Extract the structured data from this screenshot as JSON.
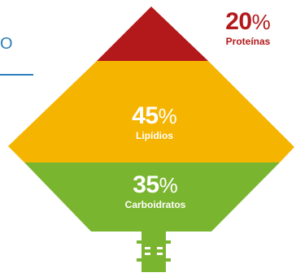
{
  "edge_text": "O",
  "segments": [
    {
      "key": "proteinas",
      "value_num": "20",
      "unit": "%",
      "label": "Proteínas",
      "color": "#b3191b"
    },
    {
      "key": "lipidios",
      "value_num": "45",
      "unit": "%",
      "label": "Lipídios",
      "color": "#f5b400"
    },
    {
      "key": "carboidratos",
      "value_num": "35",
      "unit": "%",
      "label": "Carboidratos",
      "color": "#7ab52f"
    }
  ],
  "colors": {
    "accent_blue": "#2c7fb8",
    "stand": "#7ab52f",
    "stand_highlight": "#ffffff"
  }
}
